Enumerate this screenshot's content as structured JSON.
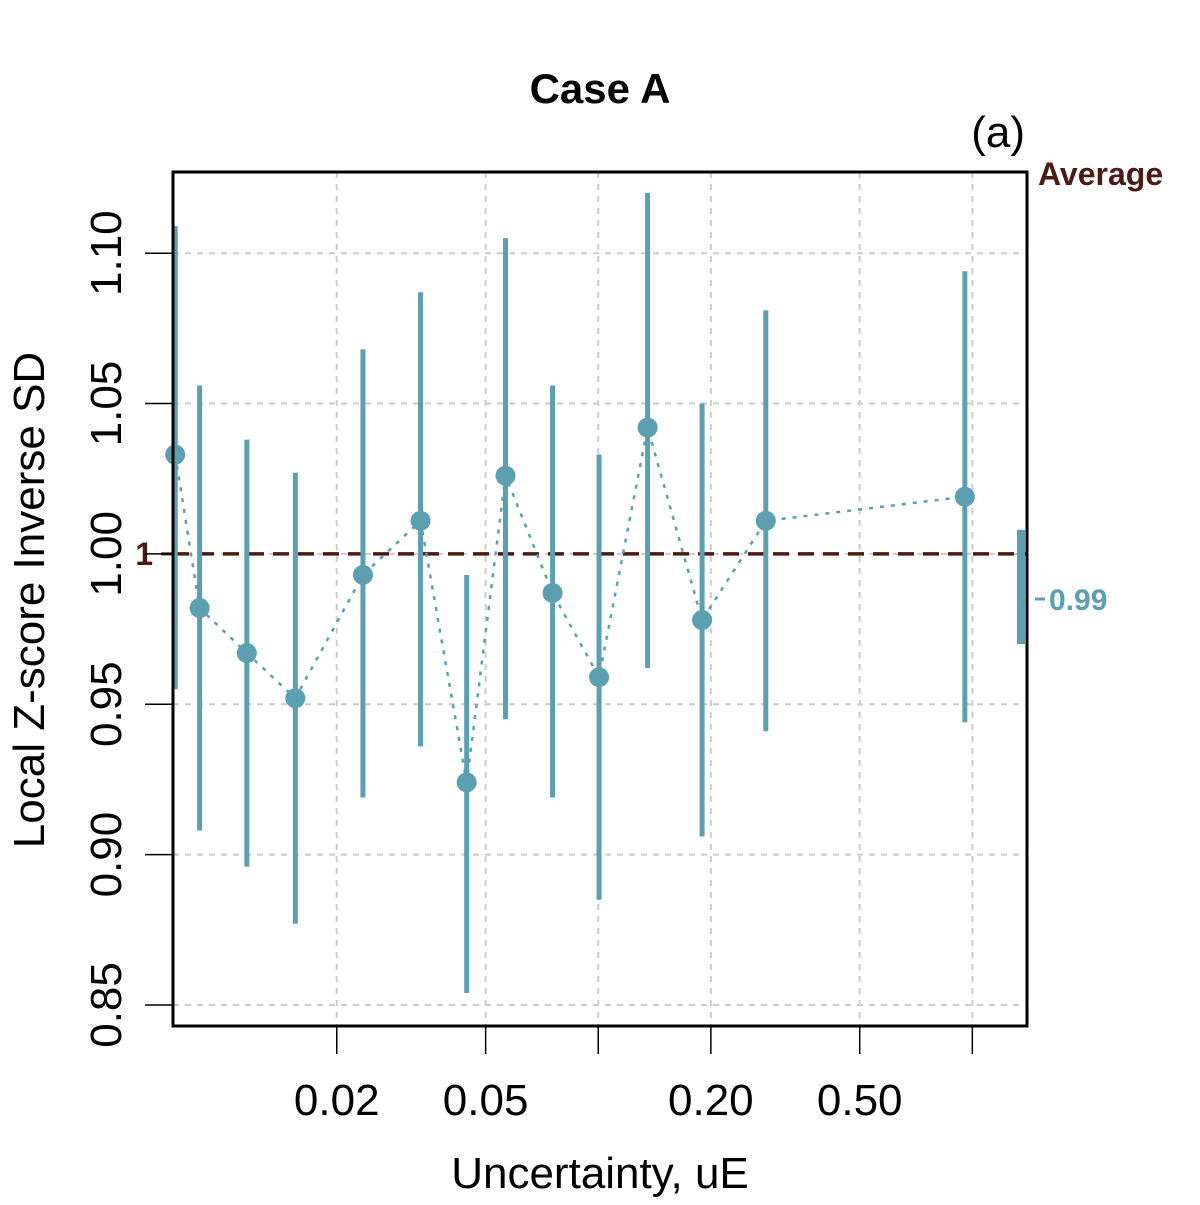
{
  "chart_data": {
    "type": "scatter",
    "title": "Case A",
    "panel_label": "(a)",
    "xlabel": "Uncertainty, uE",
    "ylabel": "Local Z-score Inverse SD",
    "x_scale": "log",
    "xlim": [
      0.0073,
      1.4
    ],
    "ylim": [
      0.843,
      1.127
    ],
    "x_ticks": [
      0.02,
      0.05,
      0.2,
      0.5
    ],
    "x_tick_labels": [
      "0.02",
      "0.05",
      "0.20",
      "0.50"
    ],
    "x_minor_ticks": [
      0.1,
      1.0
    ],
    "y_ticks": [
      0.85,
      0.9,
      0.95,
      1.0,
      1.05,
      1.1
    ],
    "y_tick_labels": [
      "0.85",
      "0.90",
      "0.95",
      "1.00",
      "1.05",
      "1.10"
    ],
    "grid": true,
    "reference_line": {
      "value": 1.0,
      "label": "1",
      "color": "#4a1a14"
    },
    "series": [
      {
        "color": "#5b9fb0",
        "x": [
          0.0074,
          0.0086,
          0.0115,
          0.0155,
          0.0235,
          0.0335,
          0.0445,
          0.0565,
          0.0755,
          0.1005,
          0.1355,
          0.1895,
          0.2805,
          0.955
        ],
        "y": [
          1.033,
          0.982,
          0.967,
          0.952,
          0.993,
          1.011,
          0.924,
          1.026,
          0.987,
          0.959,
          1.042,
          0.978,
          1.011,
          1.019
        ],
        "lower": [
          0.955,
          0.908,
          0.896,
          0.877,
          0.919,
          0.936,
          0.854,
          0.945,
          0.919,
          0.885,
          0.962,
          0.906,
          0.941,
          0.944
        ],
        "upper": [
          1.109,
          1.056,
          1.038,
          1.027,
          1.068,
          1.087,
          0.993,
          1.105,
          1.056,
          1.033,
          1.12,
          1.05,
          1.081,
          1.094
        ]
      }
    ],
    "average": {
      "label": "Average",
      "value": 0.985,
      "value_label": "0.99",
      "lower": 0.97,
      "upper": 1.008
    }
  }
}
